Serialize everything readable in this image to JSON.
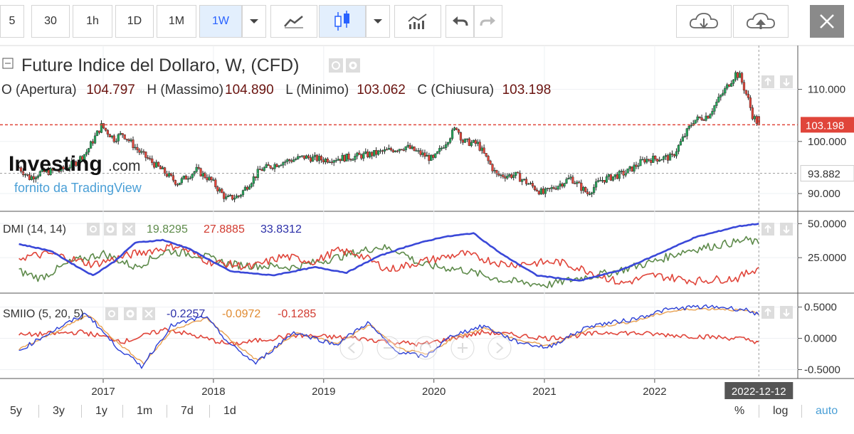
{
  "toolbar": {
    "intervals": [
      "5",
      "30",
      "1h",
      "1D",
      "1M",
      "1W"
    ],
    "active_interval": "1W",
    "icons": [
      "chevron-down-icon",
      "line-chart-icon",
      "candlestick-icon",
      "chevron-down-icon",
      "indicators-icon",
      "undo-icon",
      "redo-icon",
      "cloud-download-icon",
      "cloud-upload-icon",
      "close-icon"
    ]
  },
  "header": {
    "title": "Future Indice del Dollaro, W, (CFD)",
    "ohlc": [
      {
        "label": "O (Apertura)",
        "value": "104.797"
      },
      {
        "label": "H (Massimo)",
        "value": "104.890"
      },
      {
        "label": "L (Minimo)",
        "value": "103.062"
      },
      {
        "label": "C (Chiusura)",
        "value": "103.198"
      }
    ]
  },
  "watermark": {
    "brand": "Investing",
    "suffix": ".com",
    "provider": "fornito da TradingView"
  },
  "colors": {
    "up": "#26a65b",
    "down": "#e0453a",
    "dmi_plus": "#5d8a4a",
    "dmi_minus": "#e0453a",
    "adx": "#3a48d8",
    "smi_main": "#2b3fd6",
    "smi_signal": "#e8a050",
    "smi_osc": "#e0453a",
    "price_label": "#e0453a"
  },
  "price_axis": {
    "ticks": [
      "110.000",
      "100.000",
      "90.000"
    ],
    "last_price": "103.198",
    "crosshair_price": "93.882"
  },
  "dmi": {
    "title": "DMI (14, 14)",
    "values": [
      "19.8295",
      "27.8885",
      "33.8312"
    ],
    "ticks": [
      "50.0000",
      "25.0000"
    ]
  },
  "smi": {
    "title": "SMIIO (5, 20, 5)",
    "values": [
      "-0.2257",
      "-0.0972",
      "-0.1285"
    ],
    "ticks": [
      "0.5000",
      "0.0000",
      "-0.5000"
    ]
  },
  "time_axis": {
    "ticks": [
      "2017",
      "2018",
      "2019",
      "2020",
      "2021",
      "2022"
    ],
    "crosshair_date": "2022-12-12"
  },
  "bottom": {
    "ranges": [
      "5y",
      "3y",
      "1y",
      "1m",
      "7d",
      "1d"
    ],
    "scale_options": [
      "%",
      "log",
      "auto"
    ],
    "active_scale": "auto"
  },
  "chart_data": {
    "type": "candlestick",
    "title": "Future Indice del Dollaro, W, (CFD)",
    "anchors_date_close": [
      [
        "2016-03-28",
        95.0
      ],
      [
        "2016-05-02",
        93.0
      ],
      [
        "2016-06-06",
        94.0
      ],
      [
        "2016-08-15",
        94.5
      ],
      [
        "2016-10-03",
        96.0
      ],
      [
        "2016-11-07",
        98.0
      ],
      [
        "2016-12-26",
        103.0
      ],
      [
        "2017-02-06",
        100.5
      ],
      [
        "2017-03-06",
        101.5
      ],
      [
        "2017-05-01",
        98.0
      ],
      [
        "2017-07-03",
        95.0
      ],
      [
        "2017-09-04",
        92.0
      ],
      [
        "2017-11-06",
        94.5
      ],
      [
        "2017-12-25",
        92.5
      ],
      [
        "2018-02-12",
        89.0
      ],
      [
        "2018-03-26",
        89.5
      ],
      [
        "2018-06-04",
        94.5
      ],
      [
        "2018-08-13",
        96.0
      ],
      [
        "2018-10-29",
        97.0
      ],
      [
        "2018-12-31",
        96.5
      ],
      [
        "2019-04-01",
        97.0
      ],
      [
        "2019-06-03",
        97.5
      ],
      [
        "2019-09-30",
        99.0
      ],
      [
        "2019-12-30",
        96.5
      ],
      [
        "2020-03-16",
        102.8
      ],
      [
        "2020-04-06",
        100.0
      ],
      [
        "2020-05-25",
        99.5
      ],
      [
        "2020-07-27",
        93.5
      ],
      [
        "2020-09-28",
        93.5
      ],
      [
        "2020-12-28",
        90.0
      ],
      [
        "2021-03-29",
        93.0
      ],
      [
        "2021-05-24",
        90.0
      ],
      [
        "2021-07-05",
        92.5
      ],
      [
        "2021-09-27",
        94.0
      ],
      [
        "2021-11-29",
        96.5
      ],
      [
        "2022-02-28",
        97.0
      ],
      [
        "2022-05-09",
        104.0
      ],
      [
        "2022-06-27",
        105.0
      ],
      [
        "2022-09-26",
        113.0
      ],
      [
        "2022-10-10",
        112.5
      ],
      [
        "2022-11-07",
        108.0
      ],
      [
        "2022-11-21",
        105.0
      ],
      [
        "2022-12-12",
        103.198
      ]
    ],
    "price_ylim": [
      87,
      118
    ],
    "dmi_anchors": {
      "plus_di": [
        [
          0,
          15
        ],
        [
          10,
          10
        ],
        [
          25,
          22
        ],
        [
          40,
          28
        ],
        [
          55,
          18
        ],
        [
          70,
          30
        ],
        [
          85,
          27
        ],
        [
          100,
          20
        ],
        [
          130,
          18
        ],
        [
          150,
          25
        ],
        [
          170,
          33
        ],
        [
          180,
          30
        ],
        [
          190,
          20
        ],
        [
          210,
          16
        ],
        [
          230,
          8
        ],
        [
          250,
          5
        ],
        [
          265,
          10
        ],
        [
          280,
          14
        ],
        [
          300,
          22
        ],
        [
          315,
          30
        ],
        [
          330,
          34
        ],
        [
          345,
          38
        ],
        [
          355,
          32
        ],
        [
          363,
          19.8
        ]
      ],
      "minus_di": [
        [
          0,
          25
        ],
        [
          15,
          28
        ],
        [
          35,
          20
        ],
        [
          55,
          28
        ],
        [
          75,
          34
        ],
        [
          90,
          22
        ],
        [
          110,
          18
        ],
        [
          125,
          26
        ],
        [
          140,
          22
        ],
        [
          150,
          30
        ],
        [
          160,
          28
        ],
        [
          175,
          16
        ],
        [
          190,
          22
        ],
        [
          210,
          28
        ],
        [
          230,
          20
        ],
        [
          255,
          22
        ],
        [
          270,
          15
        ],
        [
          285,
          6
        ],
        [
          300,
          12
        ],
        [
          320,
          8
        ],
        [
          340,
          10
        ],
        [
          355,
          22
        ],
        [
          363,
          27.9
        ]
      ],
      "adx": [
        [
          0,
          35
        ],
        [
          15,
          30
        ],
        [
          28,
          18
        ],
        [
          35,
          12
        ],
        [
          45,
          22
        ],
        [
          55,
          36
        ],
        [
          68,
          38
        ],
        [
          80,
          32
        ],
        [
          100,
          15
        ],
        [
          120,
          12
        ],
        [
          140,
          18
        ],
        [
          155,
          14
        ],
        [
          170,
          26
        ],
        [
          185,
          34
        ],
        [
          200,
          40
        ],
        [
          215,
          43
        ],
        [
          228,
          28
        ],
        [
          245,
          12
        ],
        [
          265,
          8
        ],
        [
          285,
          16
        ],
        [
          300,
          26
        ],
        [
          320,
          40
        ],
        [
          340,
          48
        ],
        [
          350,
          50
        ],
        [
          363,
          33.8
        ]
      ]
    },
    "dmi_ylim": [
      0,
      58
    ],
    "smi_anchors": {
      "main": [
        [
          0,
          -0.2
        ],
        [
          15,
          0.1
        ],
        [
          32,
          0.4
        ],
        [
          45,
          -0.1
        ],
        [
          58,
          -0.45
        ],
        [
          72,
          0.2
        ],
        [
          88,
          0.35
        ],
        [
          100,
          -0.1
        ],
        [
          112,
          -0.4
        ],
        [
          130,
          0.1
        ],
        [
          150,
          -0.1
        ],
        [
          165,
          0.25
        ],
        [
          178,
          -0.2
        ],
        [
          192,
          -0.3
        ],
        [
          205,
          0.05
        ],
        [
          220,
          0.2
        ],
        [
          235,
          -0.05
        ],
        [
          250,
          -0.15
        ],
        [
          270,
          0.2
        ],
        [
          290,
          0.3
        ],
        [
          305,
          0.45
        ],
        [
          318,
          0.5
        ],
        [
          332,
          0.5
        ],
        [
          345,
          0.45
        ],
        [
          355,
          0.3
        ],
        [
          363,
          -0.2
        ]
      ],
      "signal": [
        [
          0,
          -0.18
        ],
        [
          16,
          0.08
        ],
        [
          33,
          0.38
        ],
        [
          46,
          -0.05
        ],
        [
          59,
          -0.4
        ],
        [
          73,
          0.15
        ],
        [
          89,
          0.32
        ],
        [
          101,
          -0.05
        ],
        [
          113,
          -0.36
        ],
        [
          131,
          0.08
        ],
        [
          151,
          -0.08
        ],
        [
          166,
          0.22
        ],
        [
          179,
          -0.16
        ],
        [
          193,
          -0.26
        ],
        [
          206,
          0.02
        ],
        [
          221,
          0.17
        ],
        [
          236,
          -0.03
        ],
        [
          251,
          -0.12
        ],
        [
          271,
          0.17
        ],
        [
          291,
          0.27
        ],
        [
          306,
          0.42
        ],
        [
          319,
          0.47
        ],
        [
          333,
          0.47
        ],
        [
          346,
          0.43
        ],
        [
          356,
          0.32
        ],
        [
          363,
          -0.1
        ]
      ],
      "oscillator": [
        [
          0,
          0.05
        ],
        [
          30,
          0.1
        ],
        [
          50,
          -0.05
        ],
        [
          70,
          0.15
        ],
        [
          100,
          -0.1
        ],
        [
          130,
          0.05
        ],
        [
          160,
          0.0
        ],
        [
          190,
          -0.1
        ],
        [
          220,
          0.1
        ],
        [
          250,
          0.0
        ],
        [
          280,
          0.1
        ],
        [
          310,
          0.05
        ],
        [
          340,
          0.0
        ],
        [
          363,
          -0.13
        ]
      ]
    },
    "smi_ylim": [
      -0.62,
      0.7
    ]
  }
}
